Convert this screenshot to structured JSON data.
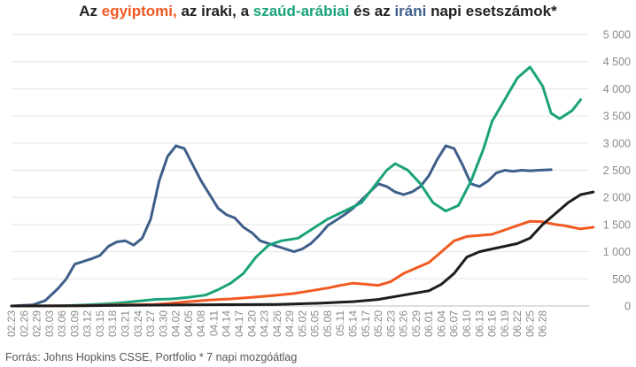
{
  "title": {
    "p1": "Az ",
    "egypt": "egyiptomi,",
    "p2": " az iraki, a ",
    "saudi": "szaúd-arábiai",
    "p3": " és az ",
    "iran": "iráni",
    "p4": " napi esetszámok*"
  },
  "source": "Forrás: Johns Hopkins CSSE, Portfolio   * 7 napi mozgóátlag",
  "chart_data": {
    "type": "line",
    "title": "Az egyiptomi, az iraki, a szaúd-arábiai és az iráni napi esetszámok*",
    "xlabel": "",
    "ylabel": "",
    "ylim": [
      0,
      5000
    ],
    "yticks": [
      0,
      500,
      1000,
      1500,
      2000,
      2500,
      3000,
      3500,
      4000,
      4500,
      5000
    ],
    "ytick_labels": [
      "0",
      "500",
      "1 000",
      "1 500",
      "2 000",
      "2 500",
      "3 000",
      "3 500",
      "4 000",
      "4 500",
      "5 000"
    ],
    "grid": true,
    "x_start": "02.23",
    "x_end": "06.30",
    "x_tick_labels": [
      "02.23",
      "02.26",
      "02.29",
      "03.03",
      "03.06",
      "03.09",
      "03.12",
      "03.15",
      "03.18",
      "03.21",
      "03.24",
      "03.27",
      "03.30",
      "04.02",
      "04.05",
      "04.08",
      "04.11",
      "04.14",
      "04.17",
      "04.20",
      "04.23",
      "04.26",
      "04.29",
      "05.02",
      "05.05",
      "05.08",
      "05.11",
      "05.14",
      "05.17",
      "05.20",
      "05.23",
      "05.26",
      "05.29",
      "06.01",
      "06.04",
      "06.07",
      "06.10",
      "06.13",
      "06.16",
      "06.19",
      "06.22",
      "06.25",
      "06.28"
    ],
    "series": [
      {
        "name": "iráni",
        "color": "#3e5f8a",
        "points": [
          [
            "02.23",
            0
          ],
          [
            "02.28",
            20
          ],
          [
            "03.02",
            100
          ],
          [
            "03.05",
            320
          ],
          [
            "03.07",
            500
          ],
          [
            "03.09",
            770
          ],
          [
            "03.11",
            820
          ],
          [
            "03.13",
            870
          ],
          [
            "03.15",
            930
          ],
          [
            "03.17",
            1100
          ],
          [
            "03.19",
            1180
          ],
          [
            "03.21",
            1200
          ],
          [
            "03.23",
            1120
          ],
          [
            "03.25",
            1250
          ],
          [
            "03.27",
            1600
          ],
          [
            "03.29",
            2300
          ],
          [
            "03.31",
            2750
          ],
          [
            "04.02",
            2950
          ],
          [
            "04.04",
            2900
          ],
          [
            "04.06",
            2600
          ],
          [
            "04.08",
            2300
          ],
          [
            "04.10",
            2050
          ],
          [
            "04.12",
            1800
          ],
          [
            "04.14",
            1680
          ],
          [
            "04.16",
            1620
          ],
          [
            "04.18",
            1450
          ],
          [
            "04.20",
            1350
          ],
          [
            "04.22",
            1200
          ],
          [
            "04.24",
            1150
          ],
          [
            "04.26",
            1100
          ],
          [
            "04.28",
            1050
          ],
          [
            "04.30",
            1000
          ],
          [
            "05.02",
            1050
          ],
          [
            "05.04",
            1150
          ],
          [
            "05.06",
            1300
          ],
          [
            "05.08",
            1480
          ],
          [
            "05.10",
            1580
          ],
          [
            "05.12",
            1680
          ],
          [
            "05.14",
            1800
          ],
          [
            "05.16",
            1950
          ],
          [
            "05.18",
            2100
          ],
          [
            "05.20",
            2250
          ],
          [
            "05.22",
            2200
          ],
          [
            "05.24",
            2100
          ],
          [
            "05.26",
            2050
          ],
          [
            "05.28",
            2100
          ],
          [
            "05.30",
            2200
          ],
          [
            "06.01",
            2400
          ],
          [
            "06.03",
            2700
          ],
          [
            "06.05",
            2950
          ],
          [
            "06.07",
            2900
          ],
          [
            "06.09",
            2600
          ],
          [
            "06.11",
            2250
          ],
          [
            "06.13",
            2200
          ],
          [
            "06.15",
            2300
          ],
          [
            "06.17",
            2450
          ],
          [
            "06.19",
            2500
          ],
          [
            "06.21",
            2480
          ],
          [
            "06.23",
            2500
          ],
          [
            "06.25",
            2490
          ],
          [
            "06.27",
            2500
          ],
          [
            "06.30",
            2510
          ]
        ]
      },
      {
        "name": "szaúd-arábiai",
        "color": "#1aa37a",
        "points": [
          [
            "02.23",
            0
          ],
          [
            "03.05",
            0
          ],
          [
            "03.12",
            20
          ],
          [
            "03.19",
            50
          ],
          [
            "03.24",
            90
          ],
          [
            "03.28",
            120
          ],
          [
            "04.01",
            130
          ],
          [
            "04.05",
            160
          ],
          [
            "04.09",
            200
          ],
          [
            "04.12",
            300
          ],
          [
            "04.15",
            420
          ],
          [
            "04.18",
            600
          ],
          [
            "04.21",
            900
          ],
          [
            "04.24",
            1120
          ],
          [
            "04.27",
            1200
          ],
          [
            "05.01",
            1250
          ],
          [
            "05.04",
            1400
          ],
          [
            "05.08",
            1600
          ],
          [
            "05.12",
            1750
          ],
          [
            "05.16",
            1900
          ],
          [
            "05.19",
            2200
          ],
          [
            "05.22",
            2500
          ],
          [
            "05.24",
            2620
          ],
          [
            "05.27",
            2500
          ],
          [
            "05.30",
            2250
          ],
          [
            "06.02",
            1900
          ],
          [
            "06.05",
            1750
          ],
          [
            "06.08",
            1850
          ],
          [
            "06.11",
            2300
          ],
          [
            "06.14",
            2900
          ],
          [
            "06.16",
            3400
          ],
          [
            "06.19",
            3800
          ],
          [
            "06.22",
            4200
          ],
          [
            "06.25",
            4400
          ],
          [
            "06.28",
            4050
          ],
          [
            "06.30",
            3550
          ],
          [
            "07.02",
            3450
          ],
          [
            "07.05",
            3600
          ],
          [
            "07.07",
            3800
          ]
        ]
      },
      {
        "name": "egyiptomi",
        "color": "#f15a22",
        "points": [
          [
            "02.23",
            0
          ],
          [
            "03.10",
            5
          ],
          [
            "03.20",
            20
          ],
          [
            "03.28",
            30
          ],
          [
            "04.01",
            50
          ],
          [
            "04.05",
            80
          ],
          [
            "04.10",
            110
          ],
          [
            "04.15",
            130
          ],
          [
            "04.20",
            160
          ],
          [
            "04.25",
            190
          ],
          [
            "04.30",
            230
          ],
          [
            "05.04",
            280
          ],
          [
            "05.08",
            330
          ],
          [
            "05.11",
            380
          ],
          [
            "05.14",
            420
          ],
          [
            "05.17",
            400
          ],
          [
            "05.20",
            380
          ],
          [
            "05.23",
            450
          ],
          [
            "05.26",
            600
          ],
          [
            "05.29",
            700
          ],
          [
            "06.01",
            800
          ],
          [
            "06.04",
            1000
          ],
          [
            "06.07",
            1200
          ],
          [
            "06.10",
            1280
          ],
          [
            "06.13",
            1300
          ],
          [
            "06.16",
            1320
          ],
          [
            "06.19",
            1400
          ],
          [
            "06.22",
            1480
          ],
          [
            "06.25",
            1560
          ],
          [
            "06.28",
            1550
          ],
          [
            "07.01",
            1500
          ],
          [
            "07.03",
            1480
          ],
          [
            "07.05",
            1450
          ],
          [
            "07.07",
            1420
          ],
          [
            "07.10",
            1450
          ]
        ]
      },
      {
        "name": "iraki",
        "color": "#1d1d1d",
        "points": [
          [
            "02.23",
            0
          ],
          [
            "03.10",
            5
          ],
          [
            "04.05",
            20
          ],
          [
            "04.26",
            30
          ],
          [
            "05.06",
            50
          ],
          [
            "05.14",
            80
          ],
          [
            "05.20",
            120
          ],
          [
            "05.26",
            200
          ],
          [
            "06.01",
            280
          ],
          [
            "06.04",
            400
          ],
          [
            "06.07",
            600
          ],
          [
            "06.10",
            900
          ],
          [
            "06.13",
            1000
          ],
          [
            "06.16",
            1050
          ],
          [
            "06.19",
            1100
          ],
          [
            "06.22",
            1150
          ],
          [
            "06.25",
            1250
          ],
          [
            "06.28",
            1500
          ],
          [
            "07.01",
            1700
          ],
          [
            "07.04",
            1900
          ],
          [
            "07.07",
            2050
          ],
          [
            "07.10",
            2100
          ]
        ]
      }
    ]
  }
}
